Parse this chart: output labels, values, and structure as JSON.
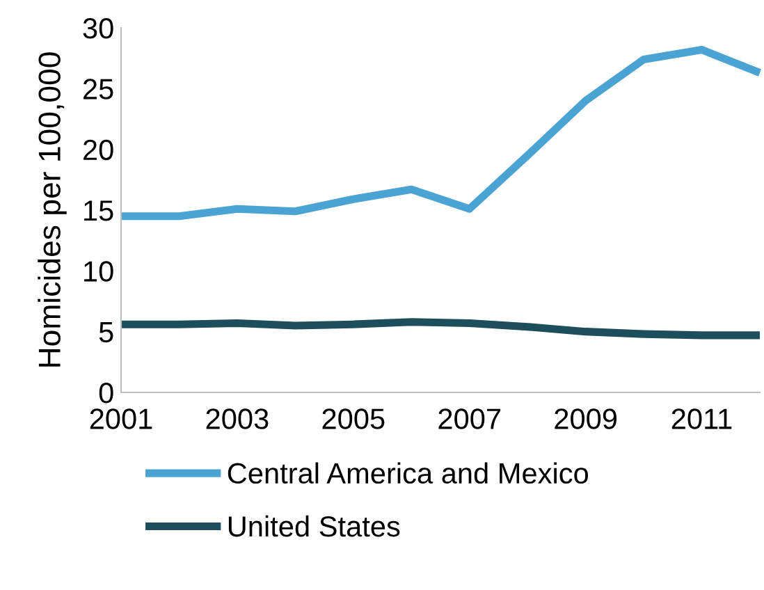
{
  "chart_data": {
    "type": "line",
    "ylabel": "Homicides per 100,000",
    "x": [
      2001,
      2002,
      2003,
      2004,
      2005,
      2006,
      2007,
      2008,
      2009,
      2010,
      2011,
      2012
    ],
    "series": [
      {
        "name": "Central America and Mexico",
        "color": "#4ba3d3",
        "values": [
          14.5,
          14.5,
          15.1,
          14.9,
          15.9,
          16.7,
          15.1,
          19.5,
          24.0,
          27.4,
          28.2,
          26.3
        ]
      },
      {
        "name": "United States",
        "color": "#1c4f5b",
        "values": [
          5.6,
          5.6,
          5.7,
          5.5,
          5.6,
          5.8,
          5.7,
          5.4,
          5.0,
          4.8,
          4.7,
          4.7
        ]
      }
    ],
    "xlim": [
      2001,
      2012
    ],
    "xticks": [
      2001,
      2003,
      2005,
      2007,
      2009,
      2011
    ],
    "ylim": [
      0,
      30
    ],
    "yticks": [
      0,
      5,
      10,
      15,
      20,
      25,
      30
    ],
    "grid": false,
    "legend": "bottom",
    "marker": "none",
    "line_style": "solid"
  }
}
